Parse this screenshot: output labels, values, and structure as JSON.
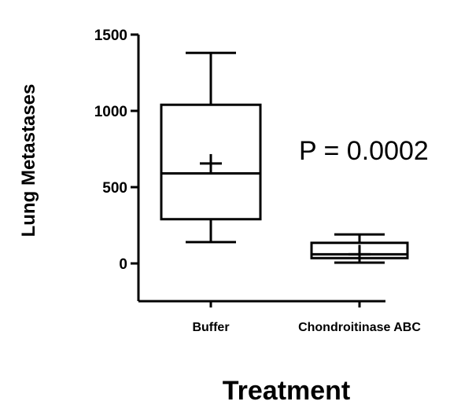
{
  "chart_data": {
    "type": "box",
    "xlabel": "Treatment",
    "ylabel": "Lung Metastases",
    "ylim": [
      -230,
      1500
    ],
    "yticks": [
      "0",
      "500",
      "1000",
      "1500"
    ],
    "categories": [
      "Buffer",
      "Chondroitinase ABC"
    ],
    "boxes": [
      {
        "category": "Buffer",
        "min": 140,
        "q1": 290,
        "median": 590,
        "q3": 1040,
        "max": 1380,
        "mean": 655
      },
      {
        "category": "Chondroitinase ABC",
        "min": 5,
        "q1": 35,
        "median": 60,
        "q3": 135,
        "max": 190,
        "mean": 60
      }
    ],
    "annotation": "P = 0.0002",
    "grid": false
  }
}
